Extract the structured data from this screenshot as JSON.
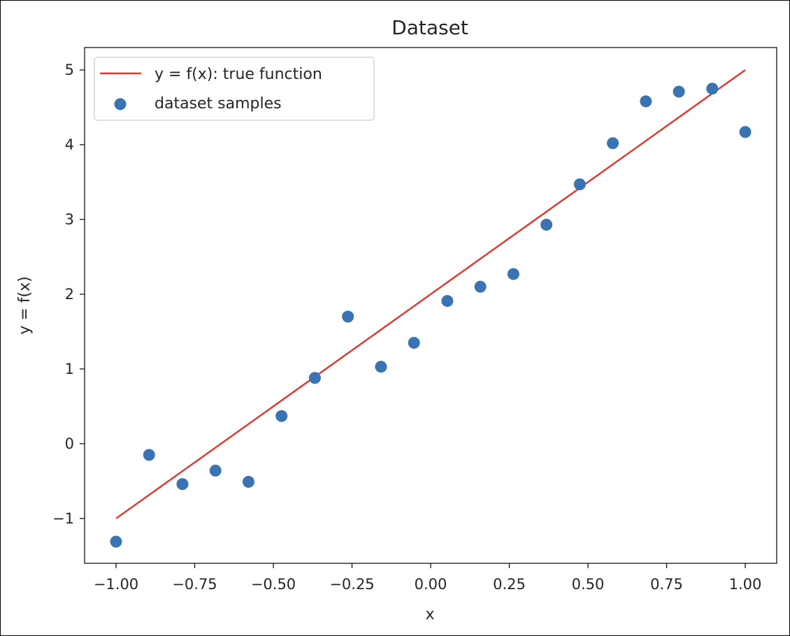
{
  "chart_data": {
    "type": "scatter",
    "title": "Dataset",
    "xlabel": "x",
    "ylabel": "y = f(x)",
    "xlim": [
      -1.1,
      1.1
    ],
    "ylim": [
      -1.6,
      5.3
    ],
    "x_ticks": [
      -1.0,
      -0.75,
      -0.5,
      -0.25,
      0.0,
      0.25,
      0.5,
      0.75,
      1.0
    ],
    "x_tick_labels": [
      "−1.00",
      "−0.75",
      "−0.50",
      "−0.25",
      "0.00",
      "0.25",
      "0.50",
      "0.75",
      "1.00"
    ],
    "y_ticks": [
      -1,
      0,
      1,
      2,
      3,
      4,
      5
    ],
    "y_tick_labels": [
      "−1",
      "0",
      "1",
      "2",
      "3",
      "4",
      "5"
    ],
    "grid": false,
    "legend_position": "top-left",
    "series": [
      {
        "name": "y = f(x): true function",
        "type": "line",
        "color": "#e8342a",
        "x": [
          -1.0,
          1.0
        ],
        "y": [
          -1.0,
          5.0
        ]
      },
      {
        "name": "dataset samples",
        "type": "scatter",
        "color": "#3a73b4",
        "x": [
          -1.0,
          -0.895,
          -0.789,
          -0.684,
          -0.579,
          -0.474,
          -0.368,
          -0.263,
          -0.158,
          -0.053,
          0.053,
          0.158,
          0.263,
          0.368,
          0.474,
          0.579,
          0.684,
          0.789,
          0.895,
          1.0
        ],
        "y": [
          -1.31,
          -0.15,
          -0.54,
          -0.36,
          -0.51,
          0.37,
          0.88,
          1.7,
          1.03,
          1.35,
          1.91,
          2.1,
          2.27,
          2.93,
          3.47,
          4.02,
          4.58,
          4.71,
          4.75,
          4.17
        ]
      }
    ]
  }
}
